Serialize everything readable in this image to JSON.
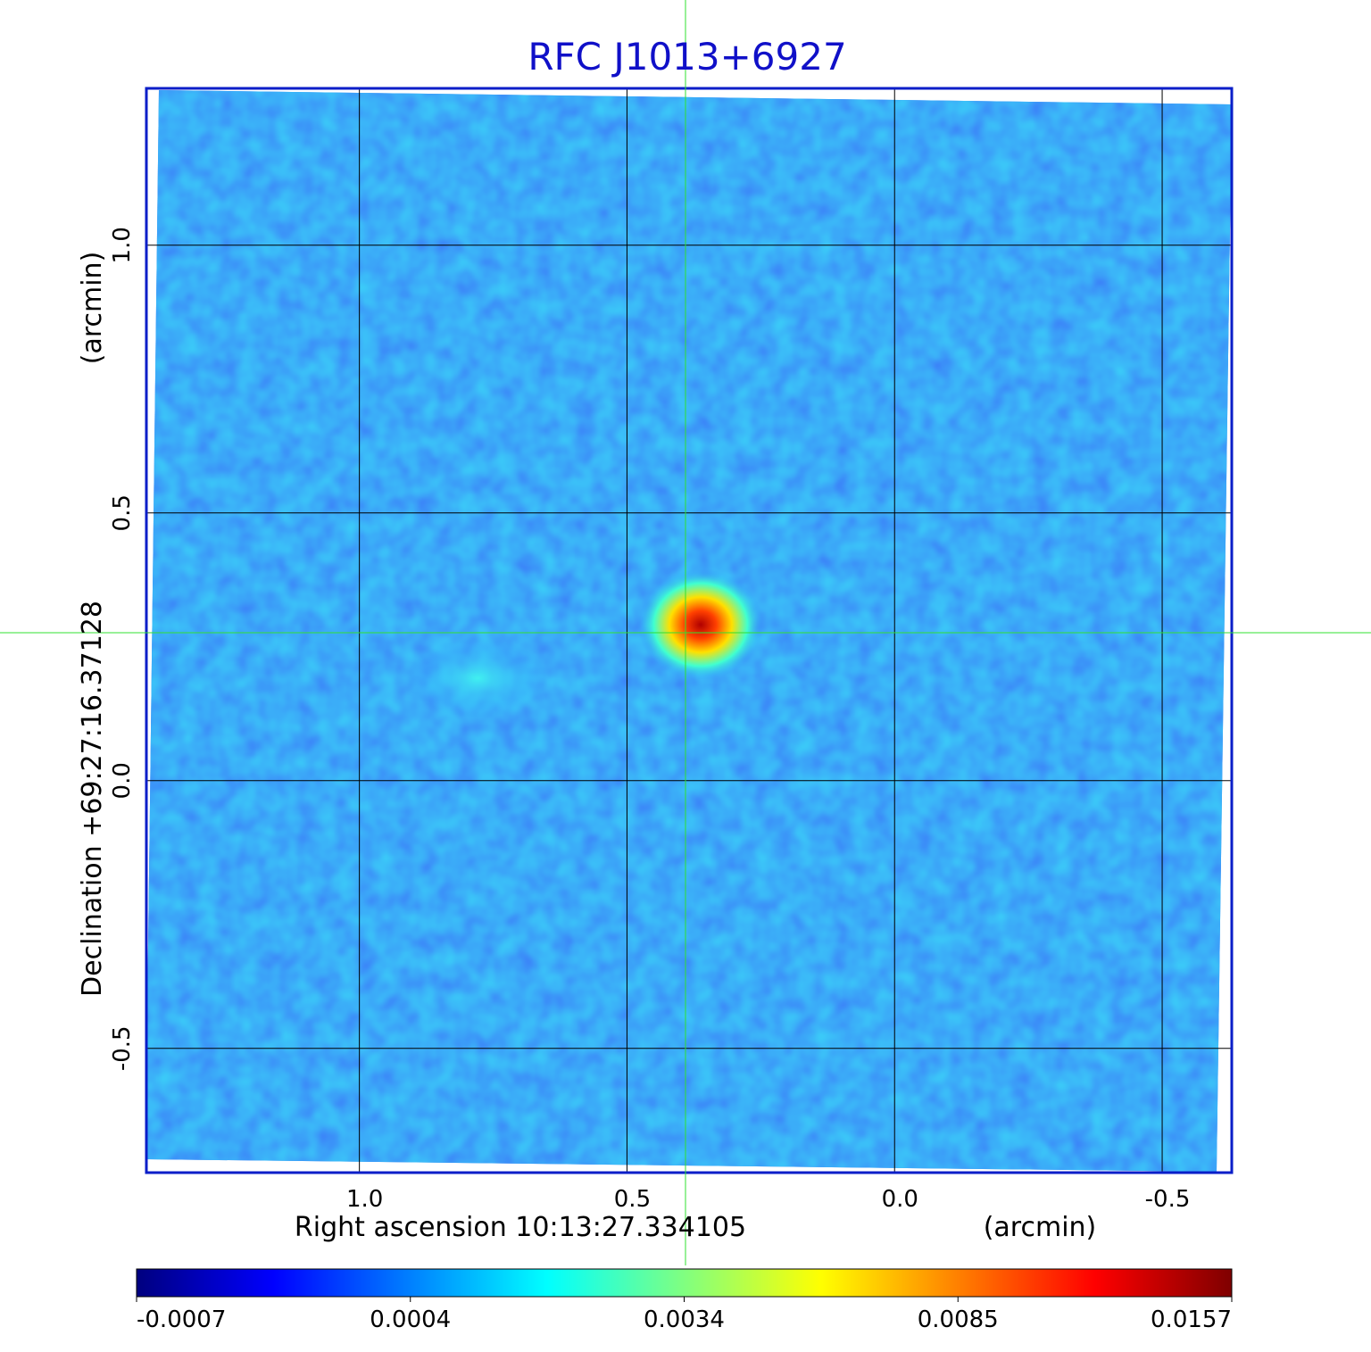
{
  "chart_data": {
    "type": "image",
    "title": "RFC J1013+6927",
    "x_label": "Right ascension  10:13:27.334105",
    "x_unit": "(arcmin)",
    "y_label": "Declination  +69:27:16.37128",
    "y_unit": "(arcmin)",
    "xlim": [
      1.398,
      -0.63
    ],
    "ylim": [
      -0.732,
      1.293
    ],
    "xticks": [
      {
        "value": 1,
        "label": "1.0"
      },
      0.5,
      {
        "value": 0,
        "label": "0.0"
      },
      -0.5
    ],
    "yticks": [
      -0.5,
      {
        "value": 0,
        "label": "0.0"
      },
      0.5,
      {
        "value": 1,
        "label": "1.0"
      }
    ],
    "grid": true,
    "colorbar": {
      "ticks": [
        -0.0007,
        0.0004,
        0.0034,
        0.0085,
        0.0157
      ],
      "colors": [
        "#00007f",
        "#0000ff",
        "#0080ff",
        "#00ffff",
        "#80ff80",
        "#ffff00",
        "#ff8000",
        "#ff0000",
        "#7f0000"
      ]
    }
  }
}
